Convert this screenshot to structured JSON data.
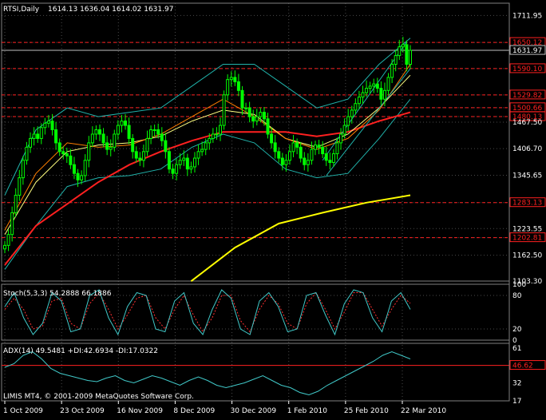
{
  "header": {
    "symbol": "RTSI,Daily",
    "ohlc": "1614.13 1636.04 1614.02 1631.97"
  },
  "colors": {
    "background": "#000000",
    "grid": "#4a4a4a",
    "axis_text": "#ffffff",
    "candle": "#00ff00",
    "ma_fast": "#ff7f00",
    "ma_mid": "#ffff80",
    "ma_slow": "#ff2020",
    "ma_long": "#ffff00",
    "bands": "#20b2aa",
    "level_lines": "#ff2020",
    "stoch_main": "#40c8c8",
    "stoch_signal": "#ff3030",
    "adx": "#40c8c8"
  },
  "footer": {
    "copyright": "LIMIS MT4, © 2001-2009 MetaQuotes Software Corp."
  },
  "chart_data": [
    {
      "type": "candlestick",
      "name": "price",
      "title": "RTSI,Daily",
      "x_ticks": [
        "1 Oct 2009",
        "23 Oct 2009",
        "16 Nov 2009",
        "8 Dec 2009",
        "30 Dec 2009",
        "1 Feb 2010",
        "25 Feb 2010",
        "22 Mar 2010"
      ],
      "y_ticks": [
        1711.95,
        1650.12,
        1631.97,
        1590.1,
        1529.82,
        1500.66,
        1480.13,
        1467.5,
        1406.7,
        1345.65,
        1283.13,
        1223.55,
        1202.81,
        1162.5,
        1103.3
      ],
      "ylim": [
        1103.3,
        1740
      ],
      "level_lines": [
        1650.12,
        1590.1,
        1529.82,
        1500.66,
        1480.13,
        1283.13,
        1202.81
      ],
      "current_price": 1631.97,
      "grid": true,
      "close_values": [
        1185,
        1210,
        1260,
        1300,
        1340,
        1380,
        1410,
        1430,
        1440,
        1430,
        1455,
        1465,
        1470,
        1450,
        1420,
        1400,
        1395,
        1390,
        1370,
        1350,
        1335,
        1345,
        1380,
        1420,
        1440,
        1450,
        1440,
        1420,
        1405,
        1410,
        1440,
        1460,
        1470,
        1460,
        1430,
        1400,
        1385,
        1380,
        1400,
        1430,
        1450,
        1450,
        1440,
        1425,
        1400,
        1360,
        1350,
        1370,
        1380,
        1385,
        1360,
        1365,
        1385,
        1400,
        1405,
        1420,
        1430,
        1440,
        1440,
        1460,
        1530,
        1565,
        1570,
        1560,
        1540,
        1500,
        1500,
        1480,
        1470,
        1480,
        1490,
        1475,
        1440,
        1420,
        1400,
        1385,
        1370,
        1380,
        1400,
        1420,
        1410,
        1385,
        1370,
        1380,
        1405,
        1415,
        1410,
        1395,
        1380,
        1375,
        1395,
        1420,
        1440,
        1460,
        1480,
        1495,
        1510,
        1525,
        1535,
        1545,
        1550,
        1555,
        1545,
        1520,
        1540,
        1570,
        1600,
        1620,
        1640,
        1645,
        1600,
        1632
      ],
      "ma_long": {
        "from_index": 51,
        "values": [
          1103,
          1180,
          1235,
          1260,
          1283,
          1300
        ]
      },
      "ma_slow": [
        1140,
        1230,
        1280,
        1330,
        1370,
        1400,
        1425,
        1445,
        1445,
        1445,
        1435,
        1445,
        1470,
        1490
      ],
      "ma_mid": [
        1210,
        1330,
        1400,
        1415,
        1420,
        1435,
        1470,
        1495,
        1485,
        1430,
        1410,
        1440,
        1500,
        1575
      ],
      "ma_fast": [
        1220,
        1350,
        1420,
        1410,
        1415,
        1440,
        1480,
        1520,
        1480,
        1430,
        1405,
        1430,
        1495,
        1600
      ],
      "bands_upper": [
        1300,
        1450,
        1500,
        1480,
        1490,
        1500,
        1550,
        1600,
        1600,
        1550,
        1500,
        1520,
        1600,
        1660
      ],
      "bands_lower": [
        1130,
        1230,
        1320,
        1340,
        1345,
        1360,
        1410,
        1440,
        1420,
        1360,
        1340,
        1350,
        1430,
        1520
      ]
    },
    {
      "type": "line",
      "name": "stochastic",
      "title": "Stoch(5,3,3) 54.2888 66.1886",
      "y_ticks": [
        100,
        80,
        20,
        0
      ],
      "ylim": [
        0,
        100
      ],
      "series": [
        {
          "name": "main",
          "values": [
            60,
            85,
            40,
            10,
            30,
            85,
            70,
            15,
            20,
            80,
            90,
            40,
            10,
            60,
            85,
            80,
            20,
            15,
            70,
            85,
            30,
            10,
            55,
            90,
            75,
            20,
            10,
            70,
            85,
            60,
            15,
            20,
            80,
            85,
            45,
            10,
            65,
            90,
            85,
            40,
            15,
            70,
            85,
            55
          ]
        },
        {
          "name": "signal",
          "values": [
            55,
            75,
            55,
            20,
            25,
            70,
            75,
            30,
            20,
            65,
            85,
            55,
            20,
            45,
            75,
            80,
            40,
            20,
            55,
            80,
            45,
            15,
            40,
            80,
            80,
            35,
            15,
            55,
            80,
            65,
            30,
            20,
            65,
            85,
            55,
            20,
            50,
            85,
            85,
            55,
            25,
            55,
            80,
            66
          ]
        }
      ]
    },
    {
      "type": "line",
      "name": "adx",
      "title": "ADX(14) 49.5481 +DI:42.6934 -DI:17.0322",
      "y_ticks": [
        61,
        46.62,
        32,
        17
      ],
      "ylim": [
        17,
        65
      ],
      "level_line": 46.62,
      "series": [
        {
          "name": "adx",
          "values": [
            45,
            48,
            55,
            58,
            52,
            44,
            40,
            38,
            36,
            34,
            33,
            36,
            38,
            34,
            32,
            35,
            38,
            36,
            33,
            30,
            34,
            37,
            34,
            30,
            28,
            30,
            32,
            35,
            38,
            34,
            30,
            28,
            24,
            22,
            25,
            30,
            34,
            38,
            42,
            46,
            50,
            55,
            58,
            55,
            52
          ]
        }
      ]
    }
  ]
}
